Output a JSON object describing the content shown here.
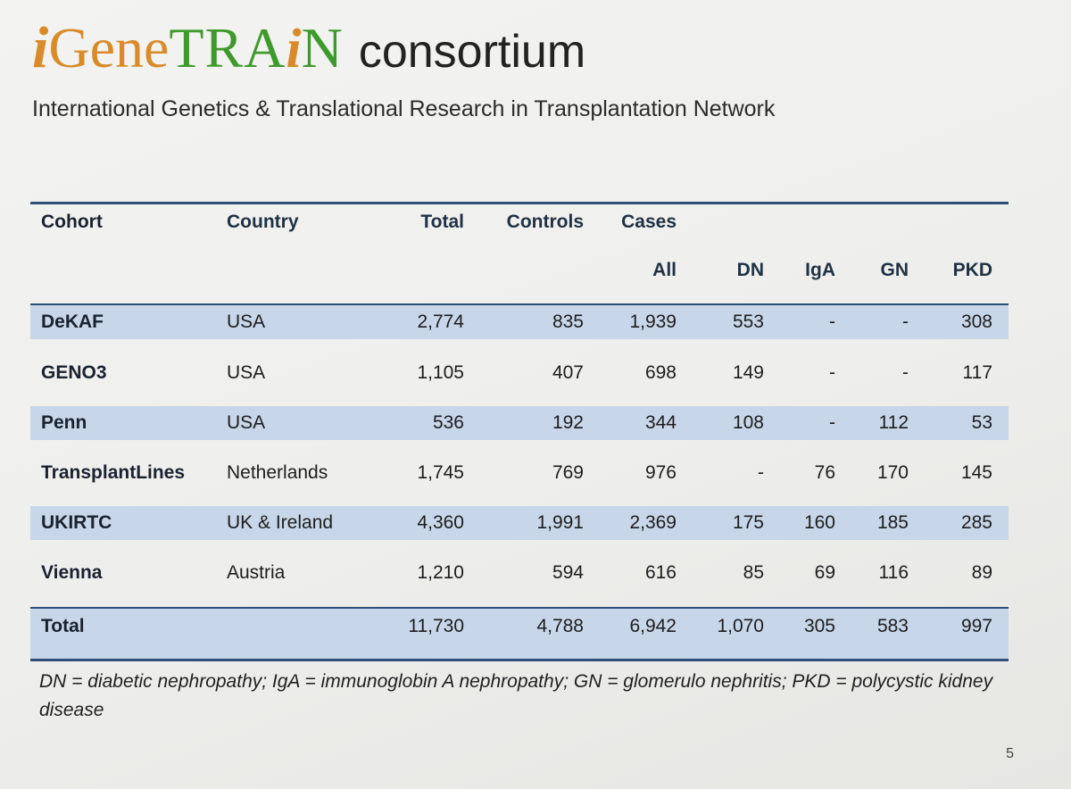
{
  "logo": {
    "part_i": "i",
    "part_gene": "Gene",
    "part_tra": "TRA",
    "part_i2": "i",
    "part_n": "N",
    "word": "consortium",
    "colors": {
      "orange": "#d98b2a",
      "green": "#3e9a2c"
    }
  },
  "subtitle": "International Genetics & Translational Research in Transplantation Network",
  "table": {
    "headers": {
      "cohort": "Cohort",
      "country": "Country",
      "total": "Total",
      "controls": "Controls",
      "cases": "Cases",
      "all": "All",
      "dn": "DN",
      "iga": "IgA",
      "gn": "GN",
      "pkd": "PKD"
    },
    "rows": [
      {
        "cohort": "DeKAF",
        "country": "USA",
        "total": "2,774",
        "controls": "835",
        "all": "1,939",
        "dn": "553",
        "iga": "-",
        "gn": "-",
        "pkd": "308"
      },
      {
        "cohort": "GENO3",
        "country": "USA",
        "total": "1,105",
        "controls": "407",
        "all": "698",
        "dn": "149",
        "iga": "-",
        "gn": "-",
        "pkd": "117"
      },
      {
        "cohort": "Penn",
        "country": "USA",
        "total": "536",
        "controls": "192",
        "all": "344",
        "dn": "108",
        "iga": "-",
        "gn": "112",
        "pkd": "53"
      },
      {
        "cohort": "TransplantLines",
        "country": "Netherlands",
        "total": "1,745",
        "controls": "769",
        "all": "976",
        "dn": "-",
        "iga": "76",
        "gn": "170",
        "pkd": "145"
      },
      {
        "cohort": "UKIRTC",
        "country": "UK & Ireland",
        "total": "4,360",
        "controls": "1,991",
        "all": "2,369",
        "dn": "175",
        "iga": "160",
        "gn": "185",
        "pkd": "285"
      },
      {
        "cohort": "Vienna",
        "country": "Austria",
        "total": "1,210",
        "controls": "594",
        "all": "616",
        "dn": "85",
        "iga": "69",
        "gn": "116",
        "pkd": "89"
      }
    ],
    "total_row": {
      "cohort": "Total",
      "country": "",
      "total": "11,730",
      "controls": "4,788",
      "all": "6,942",
      "dn": "1,070",
      "iga": "305",
      "gn": "583",
      "pkd": "997"
    }
  },
  "footnote": "DN = diabetic nephropathy; IgA = immunoglobin A nephropathy; GN = glomerulo nephritis; PKD = polycystic kidney disease",
  "page_number": "5",
  "colors": {
    "row_shade": "#c7d6e8",
    "rule": "#2e4f7a"
  }
}
